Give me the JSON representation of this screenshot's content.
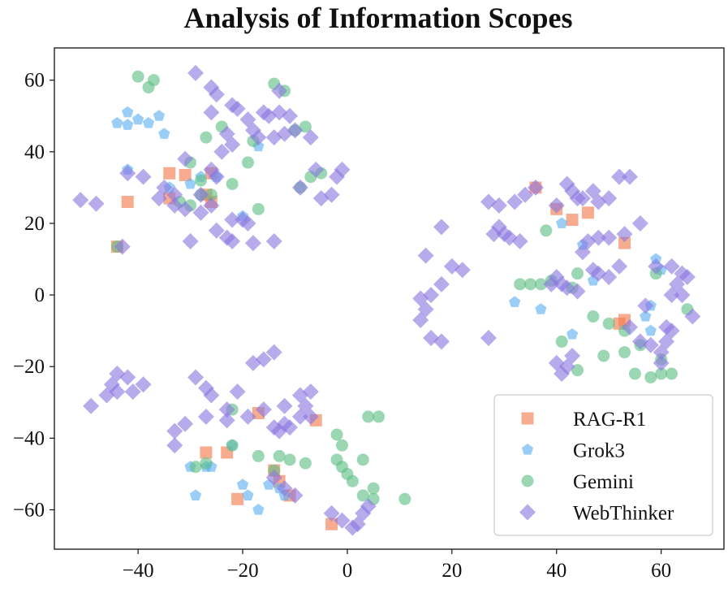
{
  "chart_data": {
    "type": "scatter",
    "title": "Analysis of Information Scopes",
    "xlabel": "",
    "ylabel": "",
    "xlim": [
      -56,
      72
    ],
    "ylim": [
      -71,
      69
    ],
    "xticks": [
      -40,
      -20,
      0,
      20,
      40,
      60
    ],
    "yticks": [
      60,
      40,
      20,
      0,
      -20,
      -40,
      -60
    ],
    "xtick_labels": [
      "−40",
      "−20",
      "0",
      "20",
      "40",
      "60"
    ],
    "ytick_labels": [
      "60",
      "40",
      "20",
      "0",
      "−20",
      "−40",
      "−60"
    ],
    "legend_position": "bottom-right",
    "series": [
      {
        "name": "RAG-R1",
        "marker": "square",
        "color": "#f4794b",
        "points": [
          [
            -34,
            34
          ],
          [
            -31,
            33.5
          ],
          [
            -26,
            34
          ],
          [
            -42,
            26
          ],
          [
            -34,
            27
          ],
          [
            -27,
            28
          ],
          [
            -26,
            26
          ],
          [
            -44,
            13.5
          ],
          [
            40,
            24
          ],
          [
            43,
            21
          ],
          [
            46,
            23
          ],
          [
            36,
            30
          ],
          [
            53,
            14.5
          ],
          [
            53,
            -7
          ],
          [
            52,
            -8
          ],
          [
            -17,
            -33
          ],
          [
            -6,
            -35
          ],
          [
            -27,
            -44
          ],
          [
            -23,
            -44
          ],
          [
            -21,
            -57
          ],
          [
            -14,
            -49
          ],
          [
            -13,
            -52
          ],
          [
            -11,
            -56
          ],
          [
            -3,
            -64
          ]
        ]
      },
      {
        "name": "Grok3",
        "marker": "pentagon",
        "color": "#5cb0f2",
        "points": [
          [
            -42,
            51
          ],
          [
            -44,
            48
          ],
          [
            -42,
            47.5
          ],
          [
            -40,
            49
          ],
          [
            -38,
            48
          ],
          [
            -36,
            50
          ],
          [
            -35,
            45
          ],
          [
            -42,
            35
          ],
          [
            -34,
            30
          ],
          [
            -30,
            31
          ],
          [
            -28,
            33
          ],
          [
            -25,
            33
          ],
          [
            -17,
            41.5
          ],
          [
            -20,
            22
          ],
          [
            41,
            20
          ],
          [
            45,
            14
          ],
          [
            47,
            4
          ],
          [
            43,
            -11
          ],
          [
            32,
            -2
          ],
          [
            37,
            -4
          ],
          [
            59,
            10
          ],
          [
            60,
            7
          ],
          [
            58,
            -3
          ],
          [
            57,
            -6
          ],
          [
            58,
            -10
          ],
          [
            -30,
            -48
          ],
          [
            -29,
            -56
          ],
          [
            -27,
            -48
          ],
          [
            -26,
            -48
          ],
          [
            -22,
            -42
          ],
          [
            -20,
            -53
          ],
          [
            -19,
            -56
          ],
          [
            -17,
            -60
          ],
          [
            -15,
            -53
          ],
          [
            -13,
            -54
          ],
          [
            -12,
            -56
          ]
        ]
      },
      {
        "name": "Gemini",
        "marker": "circle",
        "color": "#5fbf86",
        "points": [
          [
            -40,
            61
          ],
          [
            -38,
            58
          ],
          [
            -37,
            60
          ],
          [
            -14,
            59
          ],
          [
            -12,
            57
          ],
          [
            -10,
            46
          ],
          [
            -8,
            47
          ],
          [
            -18,
            43
          ],
          [
            -19,
            37
          ],
          [
            -27,
            44
          ],
          [
            -24,
            47
          ],
          [
            -30,
            37
          ],
          [
            -28,
            32
          ],
          [
            -28,
            28
          ],
          [
            -26,
            28
          ],
          [
            -30,
            25
          ],
          [
            -32,
            26
          ],
          [
            -22,
            31
          ],
          [
            -17,
            24
          ],
          [
            -9,
            30
          ],
          [
            -7,
            33
          ],
          [
            -5,
            34
          ],
          [
            -44,
            13.5
          ],
          [
            35,
            3
          ],
          [
            37,
            3
          ],
          [
            33,
            3
          ],
          [
            39,
            4
          ],
          [
            43,
            2
          ],
          [
            44,
            6
          ],
          [
            38,
            18
          ],
          [
            41,
            -13
          ],
          [
            44,
            -21
          ],
          [
            47,
            -6
          ],
          [
            50,
            -8
          ],
          [
            53,
            -10
          ],
          [
            49,
            -17
          ],
          [
            53,
            -16
          ],
          [
            56,
            -14
          ],
          [
            55,
            -22
          ],
          [
            58,
            -23
          ],
          [
            60,
            -22
          ],
          [
            60,
            -18
          ],
          [
            62,
            -22
          ],
          [
            59,
            6
          ],
          [
            65,
            -4
          ],
          [
            -22,
            -32
          ],
          [
            -29,
            -48
          ],
          [
            -27,
            -47
          ],
          [
            -22,
            -42
          ],
          [
            -17,
            -45
          ],
          [
            -14,
            -49
          ],
          [
            -13,
            -45
          ],
          [
            -11,
            -46
          ],
          [
            -8,
            -47
          ],
          [
            -2,
            -39
          ],
          [
            -1,
            -42
          ],
          [
            -2,
            -46
          ],
          [
            -1,
            -48
          ],
          [
            0,
            -50
          ],
          [
            1,
            -52
          ],
          [
            3,
            -46
          ],
          [
            4,
            -34
          ],
          [
            6,
            -34
          ],
          [
            3,
            -56
          ],
          [
            5,
            -54
          ],
          [
            5,
            -57
          ],
          [
            11,
            -57
          ]
        ]
      },
      {
        "name": "WebThinker",
        "marker": "diamond",
        "color": "#8b78e0",
        "points": [
          [
            -51,
            26.5
          ],
          [
            -48,
            25.5
          ],
          [
            -42,
            34
          ],
          [
            -39,
            33
          ],
          [
            -36,
            27
          ],
          [
            -35,
            30
          ],
          [
            -33,
            28
          ],
          [
            -33,
            25
          ],
          [
            -31,
            38
          ],
          [
            -29,
            62
          ],
          [
            -26,
            58
          ],
          [
            -25,
            56
          ],
          [
            -26,
            51
          ],
          [
            -22,
            53
          ],
          [
            -21,
            52
          ],
          [
            -23,
            45
          ],
          [
            -22,
            42
          ],
          [
            -19,
            49
          ],
          [
            -18,
            46
          ],
          [
            -16,
            51
          ],
          [
            -15,
            50
          ],
          [
            -13,
            51
          ],
          [
            -12,
            45
          ],
          [
            -11,
            50
          ],
          [
            -13,
            57
          ],
          [
            -10,
            46
          ],
          [
            -7,
            44
          ],
          [
            -6,
            35
          ],
          [
            -2,
            33
          ],
          [
            -1,
            35
          ],
          [
            -24,
            40
          ],
          [
            -26,
            35
          ],
          [
            -25,
            33
          ],
          [
            -28,
            28
          ],
          [
            -26,
            25
          ],
          [
            -22,
            21
          ],
          [
            -20,
            21
          ],
          [
            -19,
            20
          ],
          [
            -23,
            16
          ],
          [
            -25,
            18
          ],
          [
            -22,
            15
          ],
          [
            -18,
            14.5
          ],
          [
            -14,
            15
          ],
          [
            -9,
            30
          ],
          [
            -5,
            27
          ],
          [
            -3,
            28
          ],
          [
            -30,
            15
          ],
          [
            -43,
            13.5
          ],
          [
            -31,
            24
          ],
          [
            -28,
            23
          ],
          [
            -17,
            44
          ],
          [
            -14,
            44
          ],
          [
            14,
            -1
          ],
          [
            15,
            -4
          ],
          [
            16,
            0
          ],
          [
            14,
            -7
          ],
          [
            16,
            -12
          ],
          [
            18,
            -13
          ],
          [
            18,
            3
          ],
          [
            20,
            8
          ],
          [
            22,
            7
          ],
          [
            15,
            11
          ],
          [
            18,
            19
          ],
          [
            27,
            -12
          ],
          [
            27,
            26
          ],
          [
            29,
            25
          ],
          [
            30,
            17
          ],
          [
            32,
            26
          ],
          [
            34,
            28
          ],
          [
            36,
            30
          ],
          [
            28,
            17
          ],
          [
            29,
            19
          ],
          [
            31,
            16
          ],
          [
            33,
            15
          ],
          [
            39,
            3
          ],
          [
            40,
            5
          ],
          [
            41,
            3
          ],
          [
            42,
            2
          ],
          [
            44,
            1
          ],
          [
            40,
            25
          ],
          [
            42,
            31
          ],
          [
            43,
            29
          ],
          [
            44,
            27
          ],
          [
            45,
            27
          ],
          [
            47,
            29
          ],
          [
            48,
            26
          ],
          [
            50,
            27
          ],
          [
            52,
            33
          ],
          [
            54,
            33
          ],
          [
            56,
            20
          ],
          [
            53,
            17
          ],
          [
            50,
            16
          ],
          [
            48,
            16
          ],
          [
            46,
            15
          ],
          [
            45,
            12
          ],
          [
            47,
            7
          ],
          [
            48,
            6
          ],
          [
            50,
            5
          ],
          [
            52,
            8
          ],
          [
            54,
            -9
          ],
          [
            56,
            -13
          ],
          [
            58,
            -14
          ],
          [
            60,
            -16
          ],
          [
            61,
            -13
          ],
          [
            62,
            -10
          ],
          [
            60,
            -19
          ],
          [
            61,
            -9
          ],
          [
            59,
            8
          ],
          [
            62,
            8
          ],
          [
            64,
            6
          ],
          [
            65,
            5
          ],
          [
            63,
            3
          ],
          [
            62,
            0
          ],
          [
            64,
            0
          ],
          [
            66,
            -6
          ],
          [
            40,
            -19
          ],
          [
            41,
            -22
          ],
          [
            42,
            -20
          ],
          [
            43,
            -17
          ],
          [
            57,
            -3
          ],
          [
            -49,
            -31
          ],
          [
            -46,
            -28
          ],
          [
            -45,
            -25
          ],
          [
            -44,
            -22
          ],
          [
            -44,
            -27
          ],
          [
            -42,
            -23
          ],
          [
            -41,
            -27
          ],
          [
            -39,
            -25
          ],
          [
            -33,
            -42
          ],
          [
            -33,
            -38
          ],
          [
            -31,
            -36
          ],
          [
            -29,
            -23
          ],
          [
            -27,
            -26
          ],
          [
            -26,
            -28
          ],
          [
            -27,
            -34
          ],
          [
            -23,
            -35
          ],
          [
            -23,
            -32
          ],
          [
            -21,
            -27
          ],
          [
            -18,
            -19
          ],
          [
            -16,
            -18
          ],
          [
            -14,
            -16
          ],
          [
            -14,
            -37
          ],
          [
            -12,
            -36
          ],
          [
            -12,
            -31
          ],
          [
            -11,
            -37
          ],
          [
            -9,
            -34
          ],
          [
            -9,
            -28
          ],
          [
            -8,
            -31
          ],
          [
            -7,
            -27
          ],
          [
            -7,
            -34
          ],
          [
            -14,
            -51
          ],
          [
            -12,
            -54
          ],
          [
            -10,
            -56
          ],
          [
            -3,
            -61
          ],
          [
            -1,
            -63
          ],
          [
            1,
            -65
          ],
          [
            2,
            -64
          ],
          [
            3,
            -61
          ],
          [
            4,
            -59
          ],
          [
            -19,
            -34
          ],
          [
            -16,
            -32
          ],
          [
            -13,
            -38
          ]
        ]
      }
    ]
  }
}
